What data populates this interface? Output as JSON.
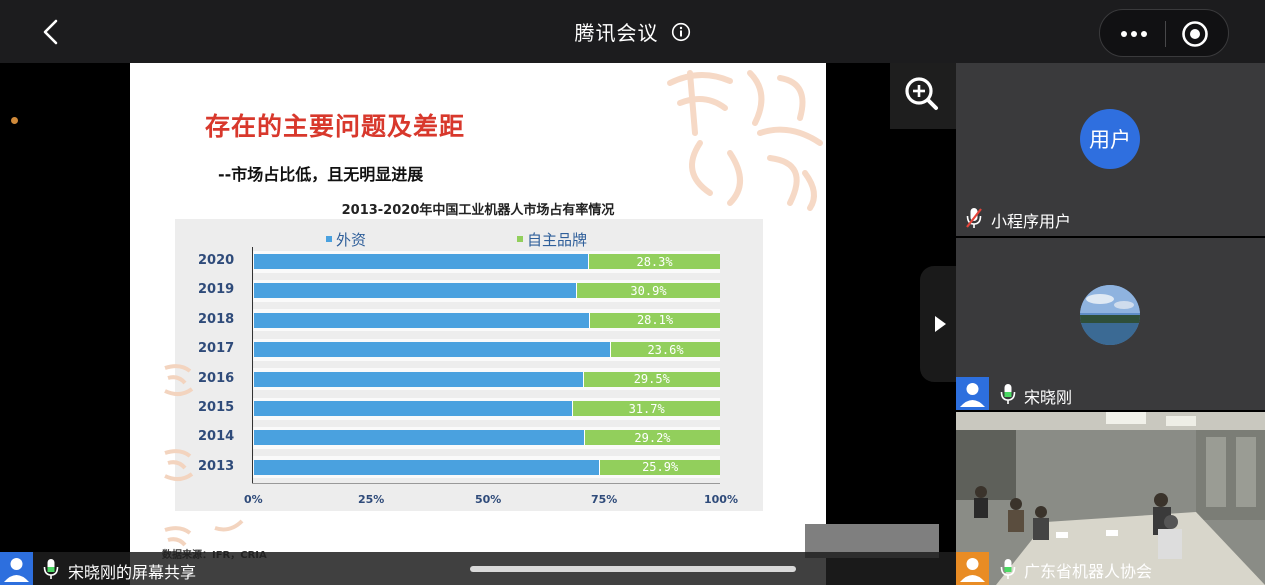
{
  "header": {
    "title": "腾讯会议"
  },
  "slide": {
    "title": "存在的主要问题及差距",
    "subtitle": "--市场占比低，且无明显进展",
    "source": "数据来源：IFR，CRIA"
  },
  "chart_data": {
    "type": "bar",
    "orientation": "horizontal-stacked-100",
    "title": "2013-2020年中国工业机器人市场占有率情况",
    "categories": [
      "2020",
      "2019",
      "2018",
      "2017",
      "2016",
      "2015",
      "2014",
      "2013"
    ],
    "series": [
      {
        "name": "外资",
        "values": [
          71.7,
          69.1,
          71.9,
          76.4,
          70.5,
          68.3,
          70.8,
          74.1
        ],
        "color": "#4aa1df"
      },
      {
        "name": "自主品牌",
        "values": [
          28.3,
          30.9,
          28.1,
          23.6,
          29.5,
          31.7,
          29.2,
          25.9
        ],
        "color": "#92cf5c"
      }
    ],
    "data_labels": [
      "28.3%",
      "30.9%",
      "28.1%",
      "23.6%",
      "29.5%",
      "31.7%",
      "29.2%",
      "25.9%"
    ],
    "xticks": [
      "0%",
      "25%",
      "50%",
      "75%",
      "100%"
    ],
    "xlim": [
      0,
      100
    ],
    "legend": "top"
  },
  "bottom": {
    "share_label": "宋晓刚的屏幕共享"
  },
  "participants": [
    {
      "avatar_text": "用户",
      "name": "小程序用户",
      "muted": true
    },
    {
      "name": "宋晓刚",
      "muted": false
    },
    {
      "name": "广东省机器人协会",
      "muted": false
    }
  ]
}
